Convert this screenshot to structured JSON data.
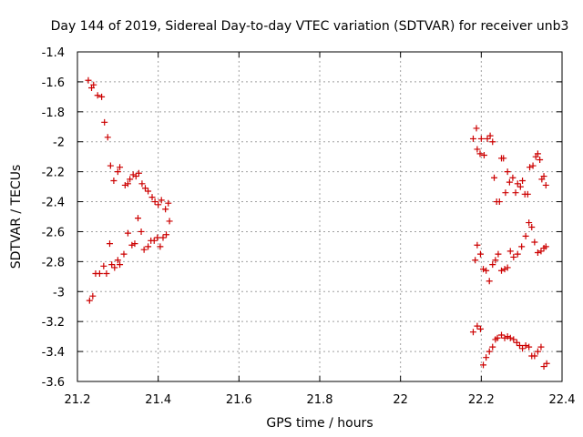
{
  "chart_data": {
    "type": "scatter",
    "title": "Day 144 of 2019, Sidereal Day-to-day VTEC variation (SDTVAR) for receiver unb3",
    "xlabel": "GPS time / hours",
    "ylabel": "SDTVAR / TECUs",
    "xlim": [
      21.2,
      22.4
    ],
    "ylim": [
      -3.6,
      -1.4
    ],
    "xticks": [
      21.2,
      21.4,
      21.6,
      21.8,
      22,
      22.2,
      22.4
    ],
    "xtick_labels": [
      "21.2",
      "21.4",
      "21.6",
      "21.8",
      "22",
      "22.2",
      "22.4"
    ],
    "yticks": [
      -1.4,
      -1.6,
      -1.8,
      -2,
      -2.2,
      -2.4,
      -2.6,
      -2.8,
      -3,
      -3.2,
      -3.4,
      -3.6
    ],
    "ytick_labels": [
      "-1.4",
      "-1.6",
      "-1.8",
      "-2",
      "-2.2",
      "-2.4",
      "-2.6",
      "-2.8",
      "-3",
      "-3.2",
      "-3.4",
      "-3.6"
    ],
    "grid": true,
    "marker": "+",
    "color": "#cc0000",
    "series": [
      {
        "name": "SDTVAR",
        "points": [
          [
            21.227,
            -1.59
          ],
          [
            21.235,
            -1.64
          ],
          [
            21.24,
            -1.62
          ],
          [
            21.25,
            -1.69
          ],
          [
            21.26,
            -1.7
          ],
          [
            21.267,
            -1.87
          ],
          [
            21.275,
            -1.97
          ],
          [
            21.282,
            -2.16
          ],
          [
            21.29,
            -2.26
          ],
          [
            21.3,
            -2.2
          ],
          [
            21.305,
            -2.17
          ],
          [
            21.318,
            -2.29
          ],
          [
            21.325,
            -2.28
          ],
          [
            21.33,
            -2.25
          ],
          [
            21.338,
            -2.22
          ],
          [
            21.345,
            -2.23
          ],
          [
            21.352,
            -2.21
          ],
          [
            21.36,
            -2.28
          ],
          [
            21.368,
            -2.31
          ],
          [
            21.375,
            -2.33
          ],
          [
            21.385,
            -2.37
          ],
          [
            21.392,
            -2.4
          ],
          [
            21.4,
            -2.42
          ],
          [
            21.408,
            -2.39
          ],
          [
            21.418,
            -2.45
          ],
          [
            21.425,
            -2.41
          ],
          [
            21.23,
            -3.06
          ],
          [
            21.238,
            -3.03
          ],
          [
            21.245,
            -2.88
          ],
          [
            21.255,
            -2.88
          ],
          [
            21.265,
            -2.83
          ],
          [
            21.272,
            -2.88
          ],
          [
            21.28,
            -2.68
          ],
          [
            21.285,
            -2.82
          ],
          [
            21.292,
            -2.84
          ],
          [
            21.3,
            -2.79
          ],
          [
            21.305,
            -2.82
          ],
          [
            21.315,
            -2.75
          ],
          [
            21.325,
            -2.61
          ],
          [
            21.335,
            -2.69
          ],
          [
            21.342,
            -2.68
          ],
          [
            21.35,
            -2.51
          ],
          [
            21.358,
            -2.6
          ],
          [
            21.365,
            -2.72
          ],
          [
            21.375,
            -2.7
          ],
          [
            21.382,
            -2.66
          ],
          [
            21.39,
            -2.66
          ],
          [
            21.398,
            -2.64
          ],
          [
            21.405,
            -2.7
          ],
          [
            21.412,
            -2.64
          ],
          [
            21.42,
            -2.62
          ],
          [
            21.428,
            -2.53
          ],
          [
            22.18,
            -1.98
          ],
          [
            22.188,
            -1.91
          ],
          [
            22.19,
            -2.05
          ],
          [
            22.197,
            -2.08
          ],
          [
            22.2,
            -1.98
          ],
          [
            22.207,
            -2.09
          ],
          [
            22.215,
            -1.98
          ],
          [
            22.222,
            -1.96
          ],
          [
            22.228,
            -2.0
          ],
          [
            22.232,
            -2.24
          ],
          [
            22.238,
            -2.4
          ],
          [
            22.245,
            -2.4
          ],
          [
            22.25,
            -2.11
          ],
          [
            22.255,
            -2.11
          ],
          [
            22.26,
            -2.34
          ],
          [
            22.265,
            -2.2
          ],
          [
            22.27,
            -2.27
          ],
          [
            22.278,
            -2.24
          ],
          [
            22.285,
            -2.34
          ],
          [
            22.29,
            -2.28
          ],
          [
            22.297,
            -2.3
          ],
          [
            22.302,
            -2.26
          ],
          [
            22.308,
            -2.35
          ],
          [
            22.315,
            -2.35
          ],
          [
            22.32,
            -2.17
          ],
          [
            22.328,
            -2.16
          ],
          [
            22.335,
            -2.1
          ],
          [
            22.34,
            -2.08
          ],
          [
            22.345,
            -2.12
          ],
          [
            22.35,
            -2.25
          ],
          [
            22.355,
            -2.23
          ],
          [
            22.36,
            -2.29
          ],
          [
            22.185,
            -2.79
          ],
          [
            22.19,
            -2.69
          ],
          [
            22.198,
            -2.75
          ],
          [
            22.205,
            -2.85
          ],
          [
            22.212,
            -2.86
          ],
          [
            22.22,
            -2.93
          ],
          [
            22.228,
            -2.82
          ],
          [
            22.235,
            -2.79
          ],
          [
            22.242,
            -2.75
          ],
          [
            22.25,
            -2.86
          ],
          [
            22.258,
            -2.85
          ],
          [
            22.265,
            -2.84
          ],
          [
            22.272,
            -2.73
          ],
          [
            22.28,
            -2.77
          ],
          [
            22.29,
            -2.75
          ],
          [
            22.3,
            -2.7
          ],
          [
            22.31,
            -2.63
          ],
          [
            22.318,
            -2.54
          ],
          [
            22.325,
            -2.57
          ],
          [
            22.332,
            -2.67
          ],
          [
            22.34,
            -2.74
          ],
          [
            22.348,
            -2.73
          ],
          [
            22.355,
            -2.71
          ],
          [
            22.36,
            -2.7
          ],
          [
            22.18,
            -3.27
          ],
          [
            22.19,
            -3.23
          ],
          [
            22.198,
            -3.25
          ],
          [
            22.205,
            -3.49
          ],
          [
            22.212,
            -3.44
          ],
          [
            22.22,
            -3.4
          ],
          [
            22.228,
            -3.37
          ],
          [
            22.235,
            -3.32
          ],
          [
            22.24,
            -3.31
          ],
          [
            22.25,
            -3.29
          ],
          [
            22.258,
            -3.31
          ],
          [
            22.265,
            -3.3
          ],
          [
            22.272,
            -3.31
          ],
          [
            22.28,
            -3.32
          ],
          [
            22.288,
            -3.34
          ],
          [
            22.295,
            -3.36
          ],
          [
            22.302,
            -3.38
          ],
          [
            22.31,
            -3.36
          ],
          [
            22.318,
            -3.37
          ],
          [
            22.325,
            -3.43
          ],
          [
            22.332,
            -3.43
          ],
          [
            22.34,
            -3.4
          ],
          [
            22.348,
            -3.37
          ],
          [
            22.355,
            -3.5
          ],
          [
            22.362,
            -3.48
          ]
        ]
      }
    ]
  }
}
